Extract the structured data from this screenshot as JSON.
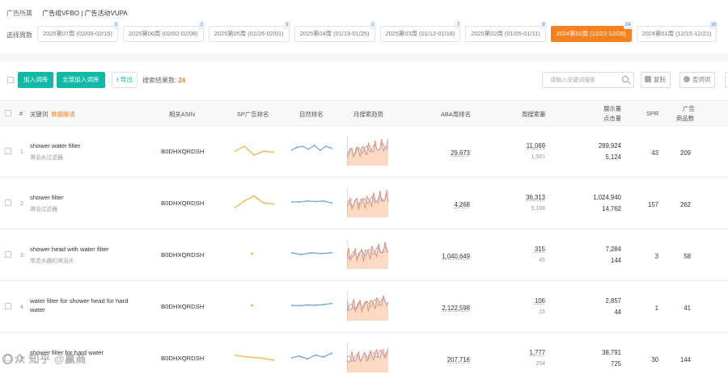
{
  "header": {
    "group_label": "广告所属",
    "group_value": "广告组VFBO | 广告活动VUPA"
  },
  "week_filter": {
    "label": "选择周数",
    "weeks": [
      {
        "label": "2025第07周 (02/09-02/15)",
        "count": "3",
        "active": false
      },
      {
        "label": "2025第06周 (02/02-02/08)",
        "count": "1",
        "active": false
      },
      {
        "label": "2025第05周 (01/26-02/01)",
        "count": "3",
        "active": false
      },
      {
        "label": "2025第04周 (01/19-01/25)",
        "count": "2",
        "active": false
      },
      {
        "label": "2025第03周 (01/12-01/18)",
        "count": "7",
        "active": false
      },
      {
        "label": "2025第02周 (01/05-01/11)",
        "count": "8",
        "active": false
      },
      {
        "label": "2024第52周 (12/22-12/28)",
        "count": "24",
        "active": true
      },
      {
        "label": "2024第51周 (12/15-12/21)",
        "count": "16",
        "active": false
      }
    ]
  },
  "toolbar": {
    "add_label": "加入词库",
    "add_all_label": "全部加入词库",
    "export_label": "导出",
    "result_label": "搜索结果数:",
    "result_count": "24",
    "search_placeholder": "请输入关键词搜索",
    "copy_label": "复制",
    "negate_label": "否词词"
  },
  "table": {
    "columns": {
      "index": "#",
      "keyword": "关键词",
      "keyword_tag": "数据解读",
      "asin": "相关ASIN",
      "sp_rank": "SP广告排名",
      "organic_rank": "自然排名",
      "monthly_trend": "月搜索趋势",
      "aba_rank": "ABA周排名",
      "weekly_search": "周搜索量",
      "impressions": "展示量",
      "clicks": "点击量",
      "spr": "SPR",
      "ad_products_line1": "广告",
      "ad_products_line2": "商品数"
    },
    "rows": [
      {
        "index": "1",
        "keyword": "shower water filter",
        "keyword_cn": "淋浴水过滤器",
        "asin": "B0DHXQRDSH",
        "aba_rank": "29,673",
        "weekly_search": "11,069",
        "weekly_search_sub": "1,581",
        "impressions": "289,924",
        "clicks": "5,124",
        "spr": "43",
        "ad_products": "209",
        "sp_trend": [
          0.55,
          0.3,
          0.75,
          0.55,
          0.6
        ],
        "organic_trend": [
          0.5,
          0.35,
          0.3,
          0.45,
          0.25,
          0.5,
          0.3,
          0.4
        ]
      },
      {
        "index": "2",
        "keyword": "shower filter",
        "keyword_cn": "淋浴过滤器",
        "asin": "B0DHXQRDSH",
        "aba_rank": "4,268",
        "weekly_search": "36,313",
        "weekly_search_sub": "5,188",
        "impressions": "1,024,940",
        "clicks": "14,762",
        "spr": "157",
        "ad_products": "262",
        "sp_trend": [
          0.8,
          0.45,
          0.2,
          0.55,
          0.6
        ],
        "organic_trend": [
          0.5,
          0.5,
          0.45,
          0.48,
          0.45,
          0.55
        ]
      },
      {
        "index": "3",
        "keyword": "shower head with water filter",
        "keyword_cn": "带滤水器的淋浴头",
        "asin": "B0DHXQRDSH",
        "aba_rank": "1,040,649",
        "weekly_search": "315",
        "weekly_search_sub": "45",
        "impressions": "7,284",
        "clicks": "144",
        "spr": "3",
        "ad_products": "58",
        "sp_trend": [
          0.5
        ],
        "organic_trend": [
          0.45,
          0.55,
          0.45,
          0.5,
          0.45
        ]
      },
      {
        "index": "4",
        "keyword": "water filter for shower head for hard water",
        "keyword_cn": "",
        "asin": "B0DHXQRDSH",
        "aba_rank": "2,122,598",
        "weekly_search": "106",
        "weekly_search_sub": "15",
        "impressions": "2,857",
        "clicks": "44",
        "spr": "1",
        "ad_products": "41",
        "sp_trend": [
          0.5
        ],
        "organic_trend": [
          0.5,
          0.52,
          0.48,
          0.5,
          0.46,
          0.4
        ]
      },
      {
        "index": "5",
        "keyword": "shower filter for hard water",
        "keyword_cn": "",
        "asin": "B0DHXQRDSH",
        "aba_rank": "207,716",
        "weekly_search": "1,777",
        "weekly_search_sub": "254",
        "impressions": "38,791",
        "clicks": "725",
        "spr": "30",
        "ad_products": "144",
        "sp_trend": [
          0.4,
          0.5,
          0.55,
          0.65
        ],
        "organic_trend": [
          0.55,
          0.45,
          0.6,
          0.4,
          0.5,
          0.3
        ]
      }
    ]
  },
  "colors": {
    "accent": "#f5821f",
    "primary": "#12b8a6",
    "sp_line": "#f2b64c",
    "organic_line": "#6fa8dc",
    "trend_fill": "#fbd9c2",
    "trend_line_a": "#f08a5d",
    "trend_line_b": "#9ea7d8"
  },
  "watermark": "众 知乎 @赢商"
}
